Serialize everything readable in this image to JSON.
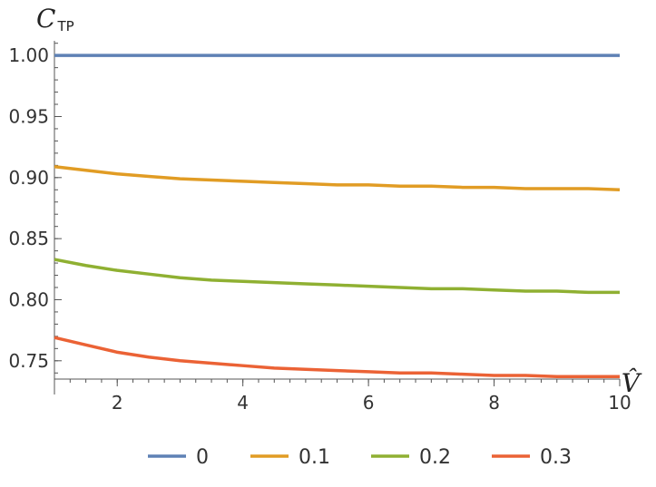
{
  "chart_data": {
    "type": "line",
    "title": "",
    "xlabel": "V̂",
    "ylabel": "C",
    "ylabel_sub": "TP",
    "xlim": [
      1,
      10
    ],
    "ylim": [
      0.735,
      1.012
    ],
    "x_ticks": [
      2,
      4,
      6,
      8,
      10
    ],
    "x_tick_labels": [
      "2",
      "4",
      "6",
      "8",
      "10"
    ],
    "y_ticks": [
      0.75,
      0.8,
      0.85,
      0.9,
      0.95,
      1.0
    ],
    "y_tick_labels": [
      "0.75",
      "0.80",
      "0.85",
      "0.90",
      "0.95",
      "1.00"
    ],
    "grid": false,
    "legend_position": "bottom",
    "x": [
      1,
      1.5,
      2,
      2.5,
      3,
      3.5,
      4,
      4.5,
      5,
      5.5,
      6,
      6.5,
      7,
      7.5,
      8,
      8.5,
      9,
      9.5,
      10
    ],
    "series": [
      {
        "name": "0",
        "color": "#5e81b5",
        "values": [
          1.0,
          1.0,
          1.0,
          1.0,
          1.0,
          1.0,
          1.0,
          1.0,
          1.0,
          1.0,
          1.0,
          1.0,
          1.0,
          1.0,
          1.0,
          1.0,
          1.0,
          1.0,
          1.0
        ]
      },
      {
        "name": "0.1",
        "color": "#e19c24",
        "values": [
          0.909,
          0.906,
          0.903,
          0.901,
          0.899,
          0.898,
          0.897,
          0.896,
          0.895,
          0.894,
          0.894,
          0.893,
          0.893,
          0.892,
          0.892,
          0.891,
          0.891,
          0.891,
          0.89
        ]
      },
      {
        "name": "0.2",
        "color": "#8fb032",
        "values": [
          0.833,
          0.828,
          0.824,
          0.821,
          0.818,
          0.816,
          0.815,
          0.814,
          0.813,
          0.812,
          0.811,
          0.81,
          0.809,
          0.809,
          0.808,
          0.807,
          0.807,
          0.806,
          0.806
        ]
      },
      {
        "name": "0.3",
        "color": "#eb6235",
        "values": [
          0.769,
          0.763,
          0.757,
          0.753,
          0.75,
          0.748,
          0.746,
          0.744,
          0.743,
          0.742,
          0.741,
          0.74,
          0.74,
          0.739,
          0.738,
          0.738,
          0.737,
          0.737,
          0.737
        ]
      }
    ]
  }
}
